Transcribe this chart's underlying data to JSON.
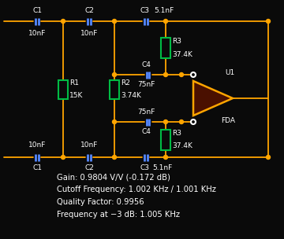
{
  "bg_color": "#0a0a0a",
  "wire_color": "#FFA500",
  "cap_color": "#5588FF",
  "res_color": "#00BB44",
  "text_color": "#FFFFFF",
  "amp_fill": "#4A1000",
  "amp_border": "#FFA500",
  "node_color": "#FFA500",
  "info_lines": [
    "Gain: 0.9804 V/V (-0.172 dB)",
    "Cutoff Frequency: 1.002 KHz / 1.001 KHz",
    "Quality Factor: 0.9956",
    "Frequency at −3 dB: 1.005 KHz"
  ],
  "figsize": [
    3.6,
    3.04
  ],
  "dpi": 100
}
